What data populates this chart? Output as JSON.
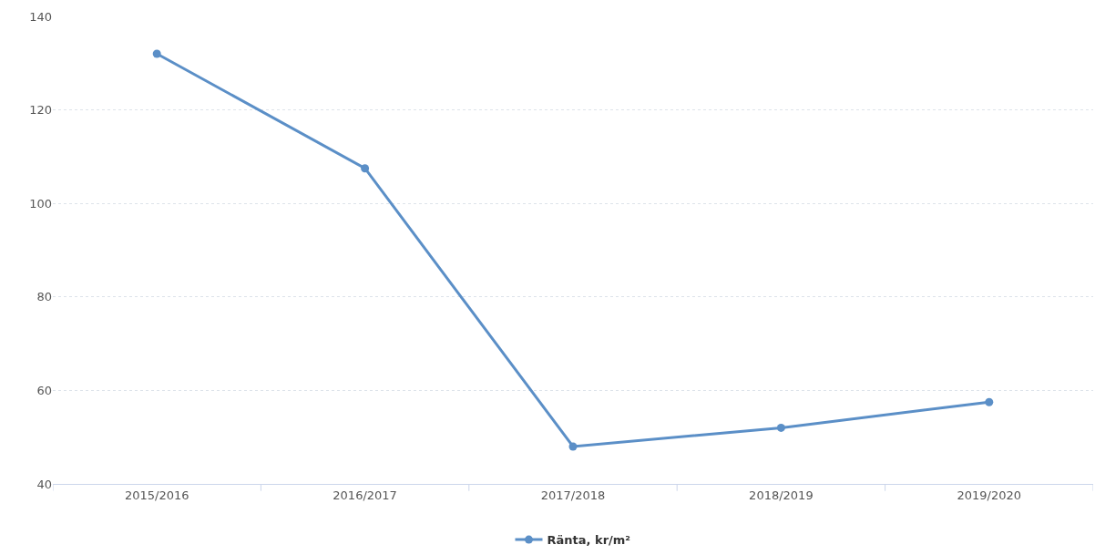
{
  "chart_data": {
    "type": "line",
    "categories": [
      "2015/2016",
      "2016/2017",
      "2017/2018",
      "2018/2019",
      "2019/2020"
    ],
    "series": [
      {
        "name": "Ränta, kr/m²",
        "color": "#5b8fc7",
        "values": [
          132,
          107.5,
          48,
          52,
          57.5
        ]
      }
    ],
    "ylim": [
      40,
      140
    ],
    "yticks": [
      40,
      60,
      80,
      100,
      120,
      140
    ],
    "grid": "y",
    "legend": "bottom",
    "marker": "circle",
    "line_style": "solid"
  }
}
